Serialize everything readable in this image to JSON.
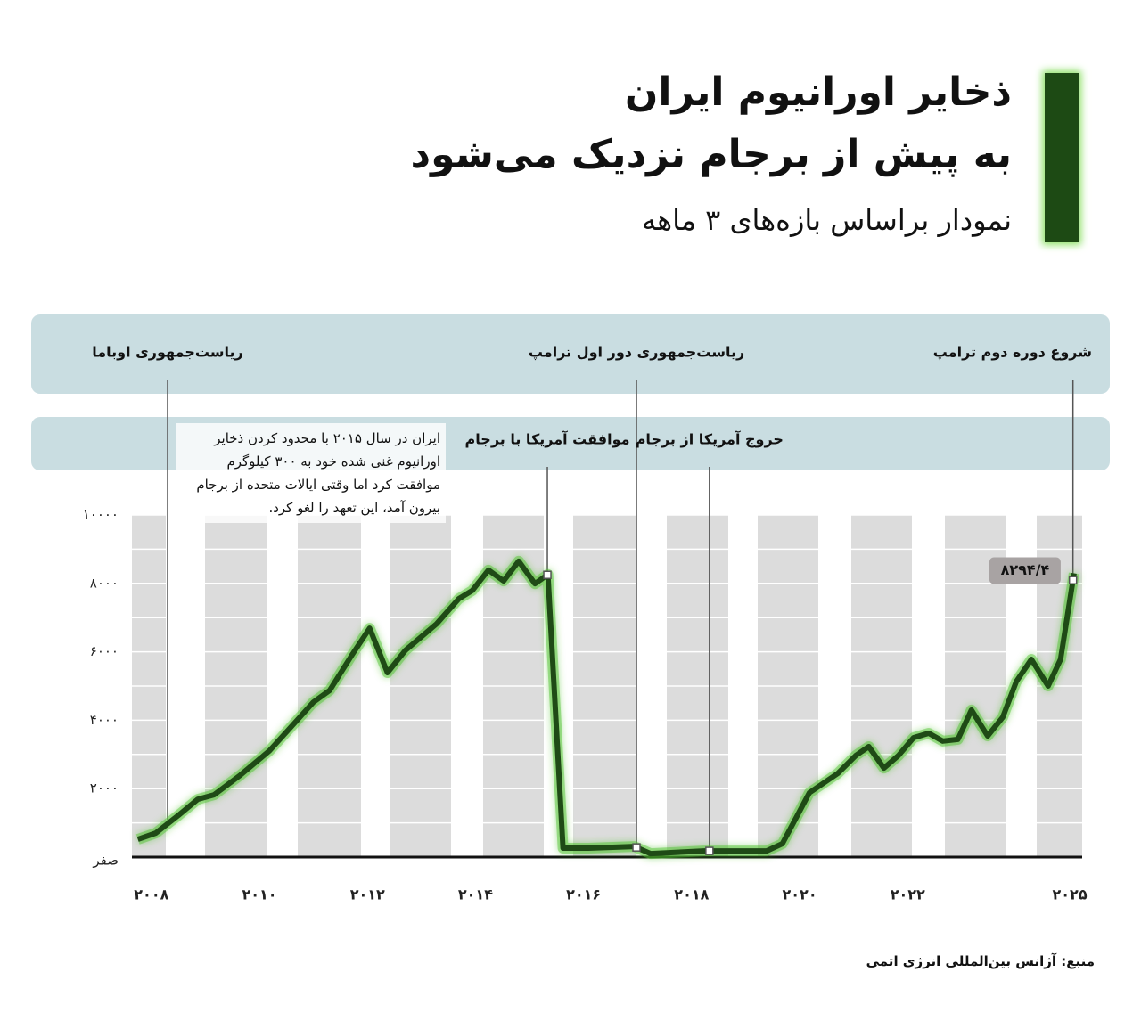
{
  "chart_data": {
    "type": "line",
    "title": [
      "ذخایر اورانیوم ایران",
      "به پیش از برجام نزدیک می‌شود"
    ],
    "subtitle": "نمودار براساس بازه‌های ۳ ماهه",
    "source": "منبع: آژانس بین‌المللی انرژی اتمی",
    "annotation": "ایران در سال ۲۰۱۵ با محدود کردن ذخایر اورانیوم غنی شده خود به ۳۰۰ کیلوگرم موافقت کرد اما وقتی ایالات متحده از برجام بیرون آمد، این تعهد را لغو کرد.",
    "x": [
      2007.75,
      2008.08,
      2008.5,
      2008.86,
      2009.16,
      2009.65,
      2010.18,
      2010.64,
      2011.0,
      2011.3,
      2011.71,
      2012.04,
      2012.37,
      2012.7,
      2013.28,
      2013.69,
      2013.94,
      2014.24,
      2014.52,
      2014.8,
      2015.1,
      2015.34,
      2015.62,
      2016.09,
      2016.94,
      2017.24,
      2018.23,
      2019.39,
      2019.68,
      2020.18,
      2020.71,
      2021.04,
      2021.28,
      2021.56,
      2021.83,
      2022.11,
      2022.39,
      2022.65,
      2022.93,
      2023.18,
      2023.48,
      2023.76,
      2024.01,
      2024.29,
      2024.6,
      2024.83,
      2025.08
    ],
    "values": [
      520,
      700,
      1220,
      1690,
      1820,
      2400,
      3100,
      3900,
      4530,
      4870,
      5900,
      6690,
      5390,
      6040,
      6820,
      7550,
      7790,
      8390,
      8070,
      8650,
      7990,
      8260,
      260,
      260,
      310,
      100,
      180,
      180,
      390,
      1880,
      2450,
      2970,
      3230,
      2600,
      2970,
      3490,
      3620,
      3390,
      3440,
      4300,
      3540,
      4090,
      5130,
      5780,
      5000,
      5780,
      8294.4
    ],
    "value_labels": [
      null,
      null,
      null,
      null,
      null,
      null,
      null,
      null,
      null,
      null,
      null,
      null,
      null,
      null,
      null,
      null,
      null,
      null,
      null,
      null,
      null,
      null,
      null,
      null,
      null,
      null,
      null,
      null,
      null,
      null,
      null,
      null,
      null,
      null,
      null,
      null,
      null,
      null,
      null,
      null,
      null,
      null,
      null,
      null,
      null,
      null,
      "۸۲۹۴/۴"
    ],
    "color": "#1f4a16",
    "xlim": [
      2007.64,
      2025.23
    ],
    "xticks": [
      {
        "value": 2008,
        "label": "۲۰۰۸"
      },
      {
        "value": 2010,
        "label": "۲۰۱۰"
      },
      {
        "value": 2012,
        "label": "۲۰۱۲"
      },
      {
        "value": 2014,
        "label": "۲۰۱۴"
      },
      {
        "value": 2016,
        "label": "۲۰۱۶"
      },
      {
        "value": 2018,
        "label": "۲۰۱۸"
      },
      {
        "value": 2020,
        "label": "۲۰۲۰"
      },
      {
        "value": 2022,
        "label": "۲۰۲۲"
      },
      {
        "value": 2025,
        "label": "۲۰۲۵"
      }
    ],
    "ylim": [
      0,
      10000
    ],
    "yticks": [
      {
        "value": 0,
        "label": "صفر"
      },
      {
        "value": 2000,
        "label": "۲۰۰۰"
      },
      {
        "value": 4000,
        "label": "۴۰۰۰"
      },
      {
        "value": 6000,
        "label": "۶۰۰۰"
      },
      {
        "value": 8000,
        "label": "۸۰۰۰"
      },
      {
        "value": 10000,
        "label": "۱۰۰۰۰"
      }
    ],
    "minor_yticks": [
      1000,
      3000,
      5000,
      7000,
      9000
    ],
    "grid": true,
    "presidencies": [
      {
        "label": "ریاست‌جمهوری اوباما",
        "x": 2008.3
      },
      {
        "label": "ریاست‌جمهوری دور اول ترامپ",
        "x": 2016.98
      },
      {
        "label": "شروع دوره دوم ترامپ",
        "x": 2025.06
      }
    ],
    "jcpoa_events": [
      {
        "label": "موافقت آمریکا با برجام",
        "x": 2015.33
      },
      {
        "label": "خروج آمریکا از برجام",
        "x": 2018.33
      }
    ]
  }
}
